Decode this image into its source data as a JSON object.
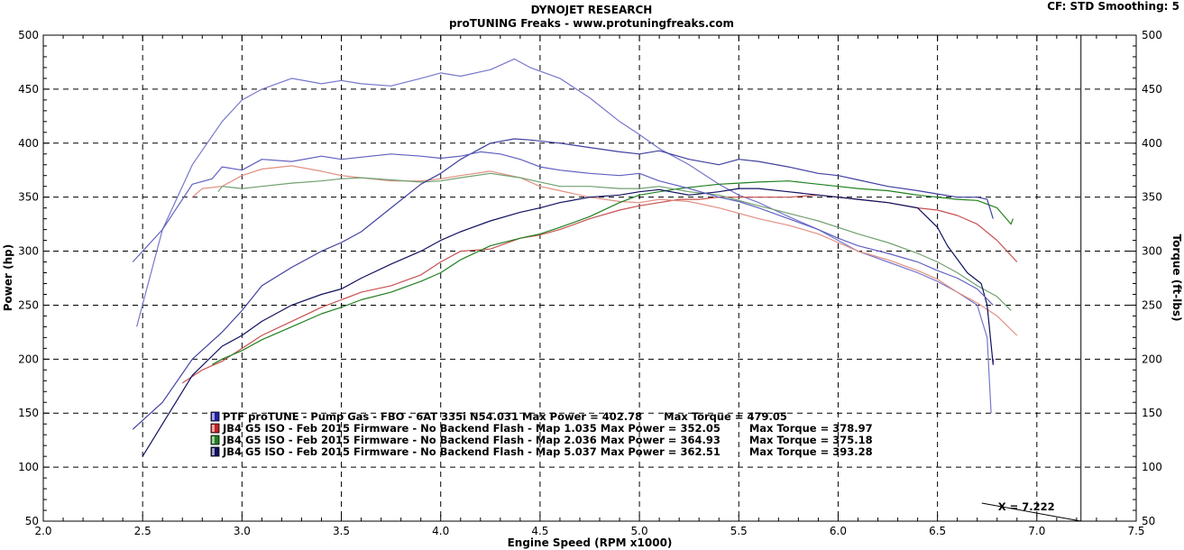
{
  "header": {
    "title": "DYNOJET RESEARCH",
    "subtitle": "proTUNING Freaks - www.protuningfreaks.com",
    "info": "CF: STD  Smoothing: 5"
  },
  "cursor": {
    "label": "X = 7.222",
    "x": 7.222
  },
  "chart_data": {
    "type": "line",
    "title": "DYNOJET RESEARCH",
    "subtitle": "proTUNING Freaks - www.protuningfreaks.com",
    "xlabel": "Engine Speed (RPM x1000)",
    "ylabel_left": "Power (hp)",
    "ylabel_right": "Torque (ft-lbs)",
    "xlim": [
      2.0,
      7.5
    ],
    "ylim": [
      50,
      500
    ],
    "xticks": [
      "2.0",
      "2.5",
      "3.0",
      "3.5",
      "4.0",
      "4.5",
      "5.0",
      "5.5",
      "6.0",
      "6.5",
      "7.0",
      "7.5"
    ],
    "yticks": [
      "50",
      "100",
      "150",
      "200",
      "250",
      "300",
      "350",
      "400",
      "450",
      "500"
    ],
    "grid": true,
    "legend": [
      {
        "text": "PTF proTUNE - Pump Gas - FBO - 6AT 335i N54.031 Max Power = 402.78      Max Torque = 479.05",
        "color": "#2020a8"
      },
      {
        "text": "JB4 G5 ISO - Feb 2015 Firmware - No Backend Flash - Map 1.035 Max Power = 352.05        Max Torque = 378.97",
        "color": "#c82020"
      },
      {
        "text": "JB4 G5 ISO - Feb 2015 Firmware - No Backend Flash - Map 2.036 Max Power = 364.93        Max Torque = 375.18",
        "color": "#208020"
      },
      {
        "text": "JB4 G5 ISO - Feb 2015 Firmware - No Backend Flash - Map 5.037 Max Power = 362.51        Max Torque = 393.28",
        "color": "#101060"
      }
    ],
    "series": [
      {
        "kind": "torque",
        "color": "#7777cc",
        "x": [
          2.47,
          2.6,
          2.75,
          2.9,
          3.0,
          3.1,
          3.25,
          3.4,
          3.5,
          3.6,
          3.75,
          3.9,
          4.0,
          4.1,
          4.25,
          4.37,
          4.45,
          4.6,
          4.75,
          4.9,
          5.0,
          5.1,
          5.25,
          5.4,
          5.5,
          5.6,
          5.75,
          5.9,
          6.0,
          6.1,
          6.25,
          6.4,
          6.5,
          6.6,
          6.7,
          6.75,
          6.77
        ],
        "y": [
          230,
          320,
          380,
          420,
          440,
          450,
          460,
          455,
          458,
          455,
          453,
          460,
          465,
          462,
          468,
          478,
          470,
          460,
          442,
          420,
          408,
          395,
          380,
          362,
          352,
          345,
          332,
          320,
          310,
          300,
          290,
          280,
          272,
          262,
          250,
          220,
          150
        ]
      },
      {
        "kind": "power",
        "color": "#c85050",
        "x": [
          2.7,
          2.8,
          2.9,
          3.0,
          3.1,
          3.25,
          3.4,
          3.5,
          3.6,
          3.75,
          3.9,
          4.0,
          4.1,
          4.25,
          4.4,
          4.5,
          4.6,
          4.75,
          4.9,
          5.0,
          5.1,
          5.2,
          5.3,
          5.4,
          5.5,
          5.6,
          5.75,
          5.9,
          6.0,
          6.1,
          6.25,
          6.4,
          6.5,
          6.6,
          6.7,
          6.8,
          6.9
        ],
        "y": [
          178,
          190,
          198,
          210,
          222,
          235,
          248,
          255,
          262,
          268,
          278,
          290,
          300,
          302,
          312,
          315,
          320,
          330,
          338,
          342,
          345,
          348,
          348,
          350,
          350,
          350,
          350,
          352,
          350,
          348,
          345,
          340,
          338,
          333,
          325,
          310,
          290
        ]
      },
      {
        "kind": "torque",
        "color": "#e09080",
        "x": [
          2.75,
          2.8,
          2.9,
          3.0,
          3.1,
          3.25,
          3.4,
          3.5,
          3.6,
          3.75,
          3.9,
          4.0,
          4.1,
          4.25,
          4.4,
          4.5,
          4.6,
          4.75,
          4.9,
          5.0,
          5.1,
          5.25,
          5.4,
          5.5,
          5.6,
          5.75,
          5.9,
          6.0,
          6.1,
          6.25,
          6.4,
          6.5,
          6.6,
          6.7,
          6.8,
          6.9
        ],
        "y": [
          350,
          358,
          360,
          370,
          376,
          379,
          374,
          370,
          368,
          365,
          365,
          367,
          370,
          374,
          368,
          360,
          356,
          350,
          346,
          345,
          348,
          346,
          340,
          335,
          330,
          324,
          316,
          308,
          300,
          292,
          282,
          274,
          262,
          252,
          240,
          222
        ]
      },
      {
        "kind": "power",
        "color": "#208020",
        "x": [
          2.85,
          2.9,
          3.0,
          3.1,
          3.25,
          3.4,
          3.5,
          3.6,
          3.75,
          3.9,
          4.0,
          4.1,
          4.25,
          4.4,
          4.5,
          4.6,
          4.75,
          4.9,
          5.0,
          5.1,
          5.2,
          5.3,
          5.4,
          5.5,
          5.6,
          5.75,
          5.9,
          6.0,
          6.1,
          6.25,
          6.4,
          6.5,
          6.6,
          6.7,
          6.8,
          6.87,
          6.88
        ],
        "y": [
          195,
          200,
          208,
          218,
          230,
          242,
          248,
          255,
          262,
          272,
          280,
          292,
          305,
          312,
          316,
          322,
          332,
          345,
          352,
          355,
          358,
          360,
          362,
          363,
          364,
          365,
          362,
          360,
          358,
          356,
          352,
          350,
          348,
          347,
          340,
          325,
          330
        ]
      },
      {
        "kind": "torque",
        "color": "#70a070",
        "x": [
          2.88,
          2.9,
          3.0,
          3.1,
          3.25,
          3.4,
          3.5,
          3.6,
          3.75,
          3.9,
          4.0,
          4.1,
          4.25,
          4.4,
          4.5,
          4.6,
          4.75,
          4.9,
          5.0,
          5.1,
          5.25,
          5.4,
          5.5,
          5.6,
          5.75,
          5.9,
          6.0,
          6.1,
          6.25,
          6.4,
          6.5,
          6.6,
          6.7,
          6.8,
          6.87
        ],
        "y": [
          355,
          360,
          358,
          360,
          363,
          365,
          367,
          368,
          366,
          364,
          365,
          368,
          372,
          368,
          364,
          360,
          360,
          358,
          358,
          360,
          355,
          352,
          347,
          342,
          335,
          328,
          322,
          316,
          308,
          298,
          290,
          280,
          268,
          258,
          245
        ]
      },
      {
        "kind": "power",
        "color": "#101060",
        "x": [
          2.5,
          2.6,
          2.75,
          2.9,
          3.0,
          3.1,
          3.25,
          3.4,
          3.5,
          3.6,
          3.75,
          3.9,
          4.0,
          4.1,
          4.25,
          4.4,
          4.5,
          4.6,
          4.75,
          4.9,
          5.0,
          5.1,
          5.25,
          5.4,
          5.5,
          5.6,
          5.75,
          5.9,
          6.0,
          6.1,
          6.25,
          6.4,
          6.5,
          6.55,
          6.65,
          6.72,
          6.75,
          6.78,
          6.78
        ],
        "y": [
          110,
          140,
          185,
          212,
          222,
          235,
          250,
          260,
          265,
          275,
          288,
          300,
          310,
          318,
          328,
          336,
          340,
          345,
          350,
          352,
          355,
          357,
          352,
          355,
          358,
          358,
          355,
          352,
          350,
          348,
          345,
          340,
          322,
          305,
          280,
          270,
          250,
          195,
          200
        ]
      },
      {
        "kind": "torque",
        "color": "#4040a0",
        "x": [
          2.45,
          2.6,
          2.75,
          2.9,
          3.0,
          3.1,
          3.25,
          3.4,
          3.5,
          3.6,
          3.75,
          3.9,
          4.0,
          4.1,
          4.25,
          4.37,
          4.45,
          4.6,
          4.75,
          4.9,
          5.0,
          5.1,
          5.25,
          5.4,
          5.5,
          5.6,
          5.75,
          5.9,
          6.0,
          6.1,
          6.25,
          6.4,
          6.5,
          6.6,
          6.7,
          6.75,
          6.78
        ],
        "y": [
          135,
          160,
          200,
          225,
          245,
          268,
          285,
          300,
          308,
          318,
          340,
          362,
          372,
          385,
          400,
          404,
          403,
          400,
          396,
          392,
          390,
          393,
          385,
          380,
          385,
          383,
          378,
          372,
          370,
          366,
          360,
          356,
          353,
          350,
          350,
          348,
          330
        ]
      },
      {
        "kind": "torque",
        "color": "#6060c0",
        "x": [
          2.45,
          2.6,
          2.75,
          2.85,
          2.9,
          3.0,
          3.1,
          3.25,
          3.4,
          3.5,
          3.6,
          3.75,
          3.9,
          4.0,
          4.1,
          4.2,
          4.3,
          4.4,
          4.5,
          4.6,
          4.75,
          4.9,
          5.0,
          5.1,
          5.25,
          5.4,
          5.5,
          5.6,
          5.75,
          5.9,
          6.0,
          6.1,
          6.25,
          6.4,
          6.5,
          6.6,
          6.7,
          6.78
        ],
        "y": [
          290,
          320,
          362,
          367,
          378,
          375,
          385,
          383,
          388,
          385,
          387,
          390,
          388,
          386,
          388,
          392,
          390,
          385,
          378,
          375,
          372,
          370,
          372,
          365,
          358,
          350,
          346,
          340,
          330,
          320,
          312,
          305,
          298,
          290,
          282,
          275,
          265,
          250
        ]
      }
    ]
  }
}
